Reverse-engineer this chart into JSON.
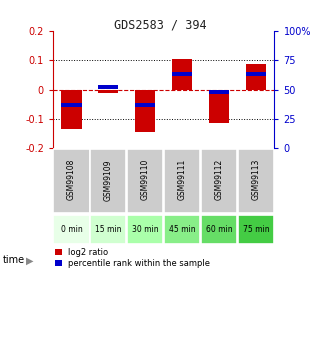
{
  "title": "GDS2583 / 394",
  "samples": [
    "GSM99108",
    "GSM99109",
    "GSM99110",
    "GSM99111",
    "GSM99112",
    "GSM99113"
  ],
  "time_labels": [
    "0 min",
    "15 min",
    "30 min",
    "45 min",
    "60 min",
    "75 min"
  ],
  "log2_ratio": [
    -0.135,
    -0.01,
    -0.145,
    0.103,
    -0.115,
    0.088
  ],
  "percentile_rank": [
    37,
    52,
    37,
    63,
    48,
    63
  ],
  "ylim": [
    -0.2,
    0.2
  ],
  "yticks": [
    -0.2,
    -0.1,
    0.0,
    0.1,
    0.2
  ],
  "right_yticks": [
    0,
    25,
    50,
    75,
    100
  ],
  "bar_color": "#cc0000",
  "blue_color": "#0000cc",
  "red_dashed_color": "#cc0000",
  "title_color": "#333333",
  "left_axis_color": "#cc0000",
  "right_axis_color": "#0000cc",
  "time_colors": [
    "#e8ffe8",
    "#d0ffd0",
    "#aaffaa",
    "#88ee88",
    "#66dd66",
    "#44cc44"
  ],
  "bar_width": 0.55,
  "background_color": "#ffffff",
  "plot_bg": "#ffffff",
  "label_bg": "#cccccc"
}
